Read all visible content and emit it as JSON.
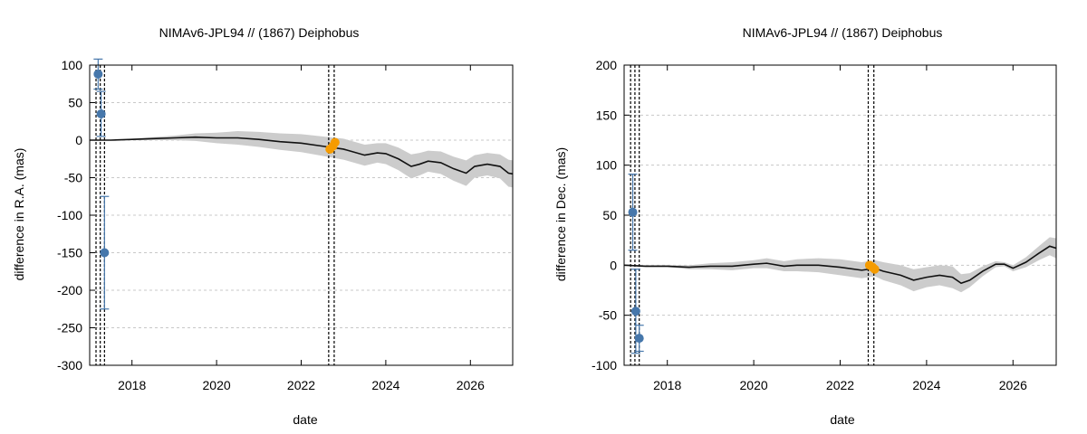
{
  "chart_data": [
    {
      "type": "line",
      "title": "NIMAv6-JPL94 // (1867) Deiphobus",
      "xlabel": "date",
      "ylabel": "difference in R.A. (mas)",
      "xlim": [
        2017.0,
        2027.0
      ],
      "ylim": [
        -300,
        100
      ],
      "xticks": [
        2018,
        2020,
        2022,
        2024,
        2026
      ],
      "yticks": [
        100,
        50,
        0,
        -50,
        -100,
        -150,
        -200,
        -250,
        -300
      ],
      "grid": true,
      "vlines": [
        2017.15,
        2017.25,
        2017.35,
        2022.65,
        2022.78
      ],
      "series": [
        {
          "name": "difference",
          "color": "#111111",
          "x": [
            2017.0,
            2017.5,
            2018.0,
            2018.5,
            2019.0,
            2019.5,
            2020.0,
            2020.5,
            2021.0,
            2021.5,
            2022.0,
            2022.5,
            2023.0,
            2023.5,
            2023.8,
            2024.0,
            2024.3,
            2024.6,
            2024.8,
            2025.0,
            2025.3,
            2025.6,
            2025.9,
            2026.1,
            2026.4,
            2026.7,
            2026.9,
            2027.0
          ],
          "y": [
            0,
            0,
            1,
            2,
            3,
            4,
            3,
            3,
            1,
            -2,
            -4,
            -8,
            -12,
            -20,
            -17,
            -18,
            -25,
            -35,
            -32,
            -28,
            -30,
            -38,
            -44,
            -35,
            -32,
            -35,
            -44,
            -45
          ],
          "band": [
            0,
            0,
            1,
            2,
            3,
            5,
            7,
            9,
            10,
            11,
            12,
            13,
            14,
            14,
            13,
            14,
            15,
            16,
            15,
            14,
            15,
            16,
            17,
            15,
            15,
            16,
            18,
            18
          ]
        }
      ],
      "points": [
        {
          "name": "observation",
          "color": "#4677ab",
          "x": [
            2017.2,
            2017.27,
            2017.35
          ],
          "y": [
            88,
            35,
            -150
          ],
          "err": [
            20,
            30,
            75
          ]
        },
        {
          "name": "observation",
          "color": "#f59b00",
          "x": [
            2022.68,
            2022.75,
            2022.8
          ],
          "y": [
            -12,
            -8,
            -3
          ],
          "err": [
            0,
            0,
            0
          ]
        }
      ]
    },
    {
      "type": "line",
      "title": "NIMAv6-JPL94 // (1867) Deiphobus",
      "xlabel": "date",
      "ylabel": "difference in Dec. (mas)",
      "xlim": [
        2017.0,
        2027.0
      ],
      "ylim": [
        -100,
        200
      ],
      "xticks": [
        2018,
        2020,
        2022,
        2024,
        2026
      ],
      "yticks": [
        200,
        150,
        100,
        50,
        0,
        -50,
        -100
      ],
      "grid": true,
      "vlines": [
        2017.15,
        2017.25,
        2017.35,
        2022.65,
        2022.78
      ],
      "series": [
        {
          "name": "difference",
          "color": "#111111",
          "x": [
            2017.0,
            2017.5,
            2018.0,
            2018.5,
            2019.0,
            2019.5,
            2020.0,
            2020.3,
            2020.7,
            2021.0,
            2021.5,
            2022.0,
            2022.5,
            2022.8,
            2023.0,
            2023.4,
            2023.7,
            2024.0,
            2024.3,
            2024.6,
            2024.8,
            2025.0,
            2025.3,
            2025.6,
            2025.8,
            2026.0,
            2026.3,
            2026.6,
            2026.85,
            2027.0
          ],
          "y": [
            0,
            -1,
            -1,
            -2,
            -1,
            -1,
            1,
            2,
            -1,
            0,
            0,
            -2,
            -5,
            -3,
            -6,
            -10,
            -15,
            -12,
            -10,
            -12,
            -18,
            -15,
            -6,
            1,
            1,
            -3,
            3,
            12,
            19,
            17
          ],
          "band": [
            0,
            1,
            1,
            2,
            3,
            4,
            4,
            5,
            5,
            6,
            7,
            8,
            8,
            8,
            9,
            10,
            11,
            10,
            10,
            11,
            9,
            7,
            5,
            3,
            2,
            3,
            5,
            7,
            9,
            10
          ]
        }
      ],
      "points": [
        {
          "name": "observation",
          "color": "#4677ab",
          "x": [
            2017.2,
            2017.27,
            2017.35
          ],
          "y": [
            53,
            -46,
            -73
          ],
          "err": [
            38,
            42,
            13
          ]
        },
        {
          "name": "observation",
          "color": "#f59b00",
          "x": [
            2022.68,
            2022.75,
            2022.8
          ],
          "y": [
            0,
            -2,
            -4
          ],
          "err": [
            0,
            0,
            0
          ]
        }
      ]
    }
  ]
}
